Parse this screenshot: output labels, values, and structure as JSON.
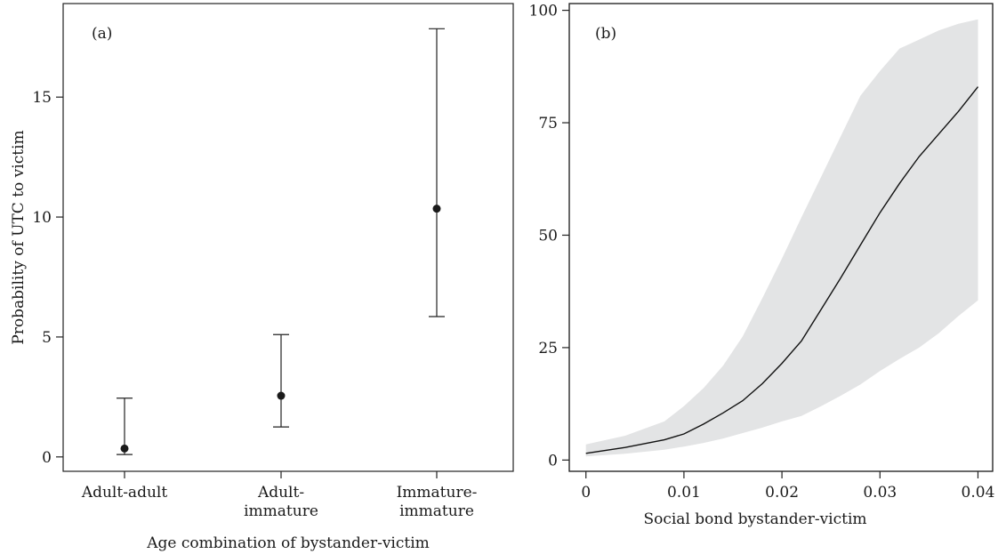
{
  "chart_data": [
    {
      "type": "scatter",
      "panel_label": "(a)",
      "title": "",
      "xlabel": "Age combination of bystander-victim",
      "ylabel": "Probability of UTC to victim",
      "categories": [
        [
          "Adult-adult"
        ],
        [
          "Adult-",
          "immature"
        ],
        [
          "Immature-",
          "immature"
        ]
      ],
      "points": [
        {
          "value": 0.35,
          "lower": 0.1,
          "upper": 2.45
        },
        {
          "value": 2.55,
          "lower": 1.25,
          "upper": 5.1
        },
        {
          "value": 10.35,
          "lower": 5.85,
          "upper": 17.85
        }
      ],
      "ylim": [
        -0.6,
        18.9
      ],
      "yticks": [
        0,
        5,
        10,
        15
      ],
      "error_bars": true,
      "grid": false
    },
    {
      "type": "line",
      "panel_label": "(b)",
      "title": "",
      "xlabel": "Social bond bystander-victim",
      "ylabel": "",
      "x": [
        0.0,
        0.004,
        0.008,
        0.01,
        0.012,
        0.014,
        0.016,
        0.018,
        0.02,
        0.022,
        0.024,
        0.026,
        0.028,
        0.03,
        0.032,
        0.034,
        0.036,
        0.038,
        0.04
      ],
      "y": [
        1.5,
        2.8,
        4.5,
        5.8,
        8.0,
        10.5,
        13.2,
        17.0,
        21.5,
        26.5,
        33.5,
        40.5,
        47.8,
        55.0,
        61.5,
        67.5,
        72.5,
        77.5,
        83.0
      ],
      "ci_lower": [
        0.8,
        1.4,
        2.3,
        3.0,
        3.8,
        4.8,
        6.0,
        7.2,
        8.6,
        9.8,
        12.0,
        14.3,
        16.8,
        19.8,
        22.5,
        25.0,
        28.2,
        32.0,
        35.5
      ],
      "ci_upper": [
        3.5,
        5.4,
        8.6,
        12.0,
        16.0,
        21.0,
        27.5,
        36.0,
        44.8,
        54.0,
        63.0,
        72.0,
        81.0,
        86.5,
        91.5,
        93.5,
        95.5,
        97.0,
        98.0
      ],
      "xlim": [
        -0.0017,
        0.0415
      ],
      "ylim": [
        -2.5,
        101.5
      ],
      "xticks": [
        0,
        0.01,
        0.02,
        0.03,
        0.04
      ],
      "xtick_labels": [
        "0",
        "0.01",
        "0.02",
        "0.03",
        "0.04"
      ],
      "yticks": [
        0,
        25,
        50,
        75,
        100
      ],
      "band_color": "#e3e4e5",
      "line_color": "#111111",
      "grid": false
    }
  ]
}
